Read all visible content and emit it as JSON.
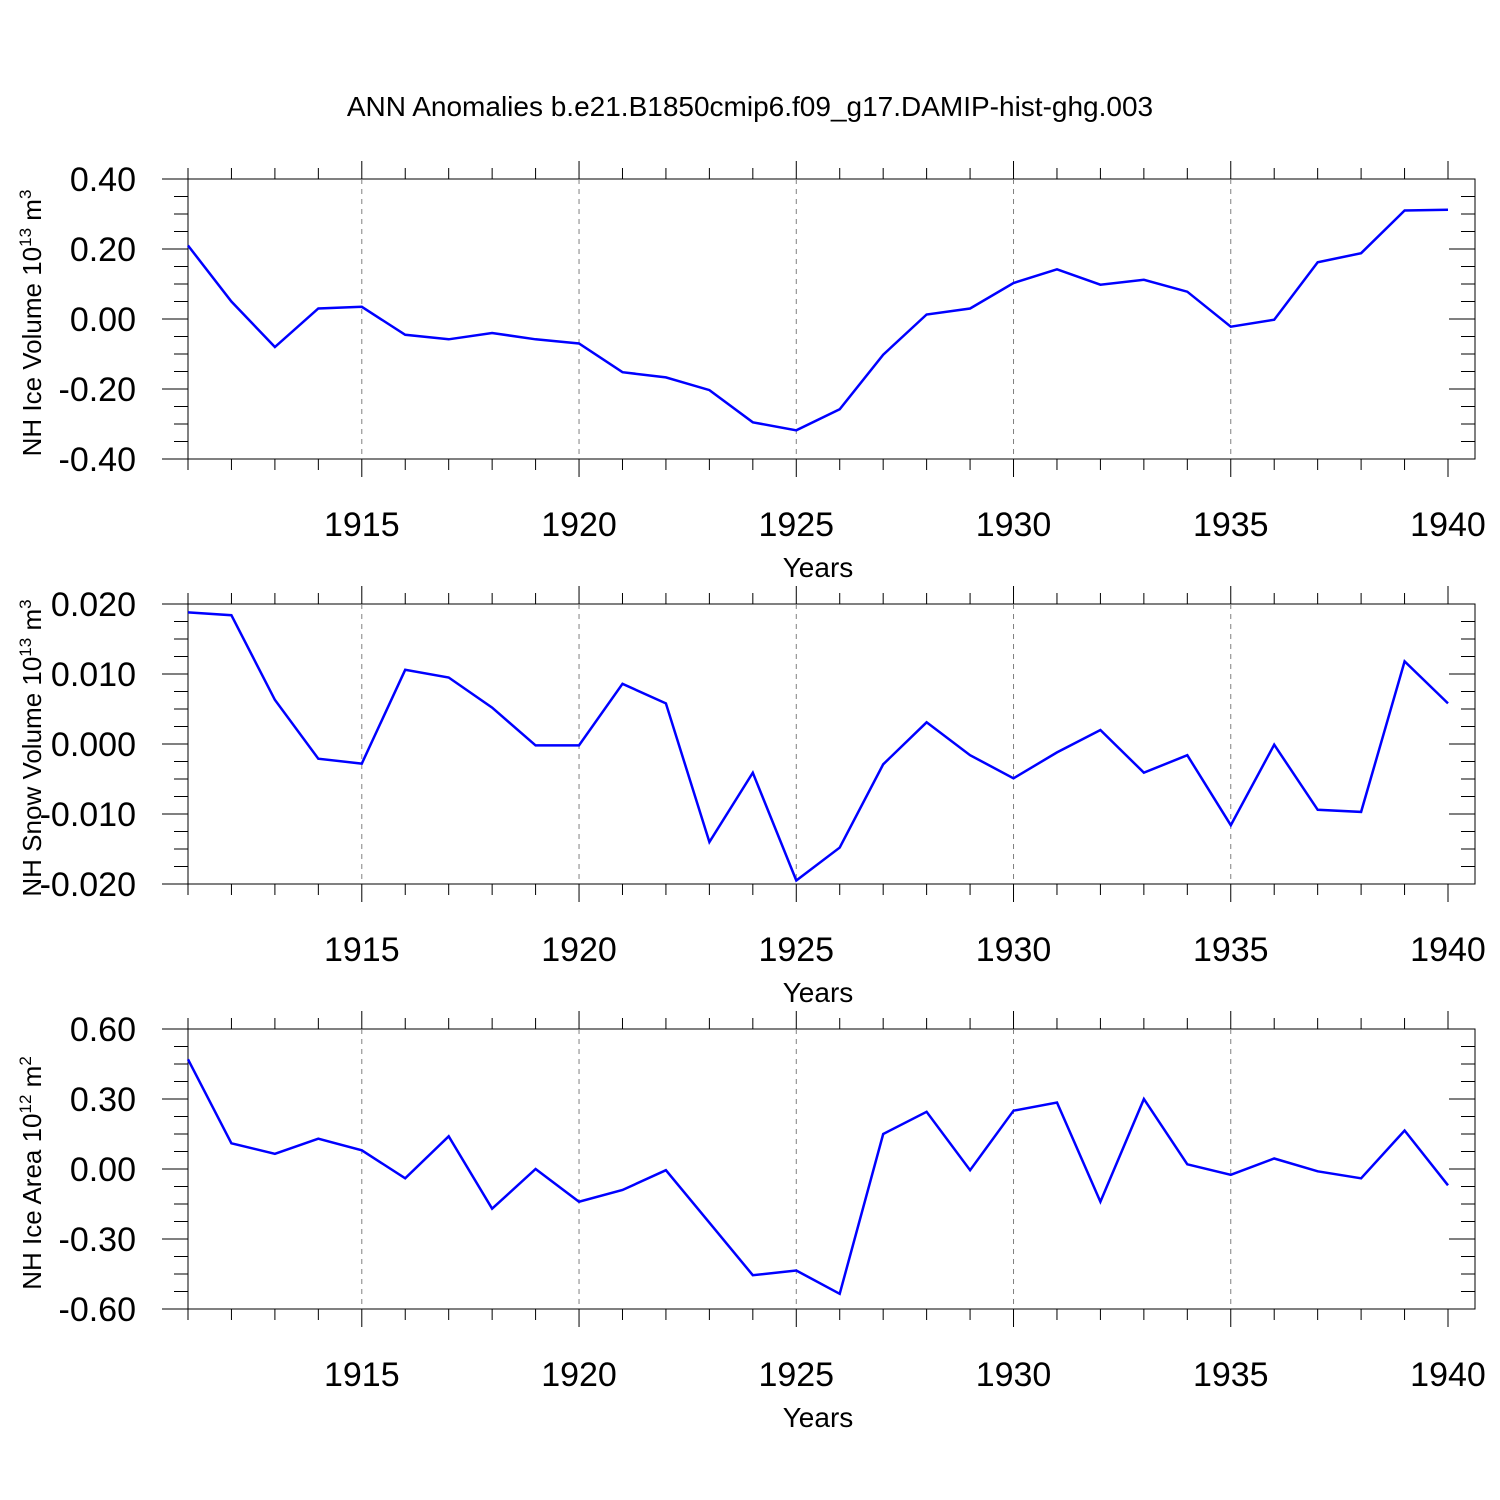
{
  "figure": {
    "title": "ANN Anomalies b.e21.B1850cmip6.f09_g17.DAMIP-hist-ghg.003",
    "line_color": "#0000ff",
    "grid_color": "#808080"
  },
  "chart_data": [
    {
      "type": "line",
      "ylabel": "NH Ice Volume 10",
      "ylabel_unit": "m",
      "ylabel_exp": "13",
      "ylabel_unit_exp": "3",
      "xlabel": "Years",
      "x": [
        1911,
        1912,
        1913,
        1914,
        1915,
        1916,
        1917,
        1918,
        1919,
        1920,
        1921,
        1922,
        1923,
        1924,
        1925,
        1926,
        1927,
        1928,
        1929,
        1930,
        1931,
        1932,
        1933,
        1934,
        1935,
        1936,
        1937,
        1938,
        1939,
        1940
      ],
      "values": [
        0.21,
        0.05,
        -0.08,
        0.03,
        0.035,
        -0.045,
        -0.058,
        -0.04,
        -0.058,
        -0.07,
        -0.152,
        -0.167,
        -0.203,
        -0.295,
        -0.318,
        -0.258,
        -0.102,
        0.013,
        0.03,
        0.103,
        0.142,
        0.098,
        0.112,
        0.078,
        -0.022,
        -0.002,
        0.162,
        0.188,
        0.31,
        0.312
      ],
      "ylim": [
        -0.4,
        0.4
      ],
      "yticks": [
        -0.4,
        -0.2,
        0.0,
        0.2,
        0.4
      ],
      "ytick_labels": [
        "-0.40",
        "-0.20",
        "0.00",
        "0.20",
        "0.40"
      ],
      "xlim": [
        1911,
        1940
      ],
      "xticks": [
        1915,
        1920,
        1925,
        1930,
        1935,
        1940
      ],
      "xtick_labels": [
        "1915",
        "1920",
        "1925",
        "1930",
        "1935",
        "1940"
      ]
    },
    {
      "type": "line",
      "ylabel": "NH Snow Volume 10",
      "ylabel_unit": "m",
      "ylabel_exp": "13",
      "ylabel_unit_exp": "3",
      "xlabel": "Years",
      "x": [
        1911,
        1912,
        1913,
        1914,
        1915,
        1916,
        1917,
        1918,
        1919,
        1920,
        1921,
        1922,
        1923,
        1924,
        1925,
        1926,
        1927,
        1928,
        1929,
        1930,
        1931,
        1932,
        1933,
        1934,
        1935,
        1936,
        1937,
        1938,
        1939,
        1940
      ],
      "values": [
        0.0188,
        0.0184,
        0.0063,
        -0.0021,
        -0.0028,
        0.0106,
        0.0095,
        0.0052,
        -0.0002,
        -0.0002,
        0.0086,
        0.0058,
        -0.014,
        -0.0041,
        -0.0195,
        -0.0148,
        -0.0029,
        0.0031,
        -0.0016,
        -0.0049,
        -0.0012,
        0.002,
        -0.0041,
        -0.0016,
        -0.0116,
        -0.0001,
        -0.0094,
        -0.0097,
        0.0118,
        0.0058
      ],
      "ylim": [
        -0.02,
        0.02
      ],
      "yticks": [
        -0.02,
        -0.01,
        0.0,
        0.01,
        0.02
      ],
      "ytick_labels": [
        "-0.020",
        "-0.010",
        "0.000",
        "0.010",
        "0.020"
      ],
      "xlim": [
        1911,
        1940
      ],
      "xticks": [
        1915,
        1920,
        1925,
        1930,
        1935,
        1940
      ],
      "xtick_labels": [
        "1915",
        "1920",
        "1925",
        "1930",
        "1935",
        "1940"
      ]
    },
    {
      "type": "line",
      "ylabel": "NH Ice Area 10",
      "ylabel_unit": "m",
      "ylabel_exp": "12",
      "ylabel_unit_exp": "2",
      "xlabel": "Years",
      "x": [
        1911,
        1912,
        1913,
        1914,
        1915,
        1916,
        1917,
        1918,
        1919,
        1920,
        1921,
        1922,
        1923,
        1924,
        1925,
        1926,
        1927,
        1928,
        1929,
        1930,
        1931,
        1932,
        1933,
        1934,
        1935,
        1936,
        1937,
        1938,
        1939,
        1940
      ],
      "values": [
        0.47,
        0.11,
        0.065,
        0.13,
        0.08,
        -0.04,
        0.14,
        -0.17,
        0.0,
        -0.14,
        -0.09,
        -0.005,
        -0.23,
        -0.455,
        -0.435,
        -0.535,
        0.15,
        0.245,
        -0.005,
        0.25,
        0.285,
        -0.14,
        0.3,
        0.02,
        -0.025,
        0.045,
        -0.01,
        -0.04,
        0.165,
        -0.07
      ],
      "ylim": [
        -0.6,
        0.6
      ],
      "yticks": [
        -0.6,
        -0.3,
        0.0,
        0.3,
        0.6
      ],
      "ytick_labels": [
        "-0.60",
        "-0.30",
        "0.00",
        "0.30",
        "0.60"
      ],
      "xlim": [
        1911,
        1940
      ],
      "xticks": [
        1915,
        1920,
        1925,
        1930,
        1935,
        1940
      ],
      "xtick_labels": [
        "1915",
        "1920",
        "1925",
        "1930",
        "1935",
        "1940"
      ]
    }
  ]
}
